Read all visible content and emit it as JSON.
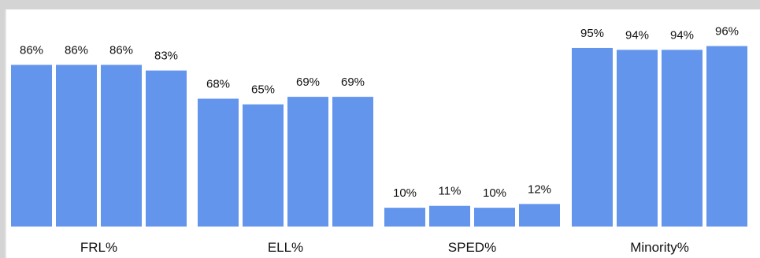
{
  "chart_data": {
    "type": "bar",
    "categories": [
      "FRL%",
      "ELL%",
      "SPED%",
      "Minority%"
    ],
    "series": [
      {
        "values": [
          86,
          68,
          10,
          95
        ]
      },
      {
        "values": [
          86,
          65,
          11,
          94
        ]
      },
      {
        "values": [
          86,
          69,
          10,
          94
        ]
      },
      {
        "values": [
          83,
          69,
          12,
          96
        ]
      }
    ],
    "value_labels": [
      [
        "86%",
        "86%",
        "86%",
        "83%"
      ],
      [
        "68%",
        "65%",
        "69%",
        "69%"
      ],
      [
        "10%",
        "11%",
        "10%",
        "12%"
      ],
      [
        "95%",
        "94%",
        "94%",
        "96%"
      ]
    ],
    "ylim": [
      0,
      100
    ],
    "bar_color": "#6495ed",
    "grid": false,
    "legend": "none",
    "title": "",
    "xlabel": "",
    "ylabel": ""
  }
}
